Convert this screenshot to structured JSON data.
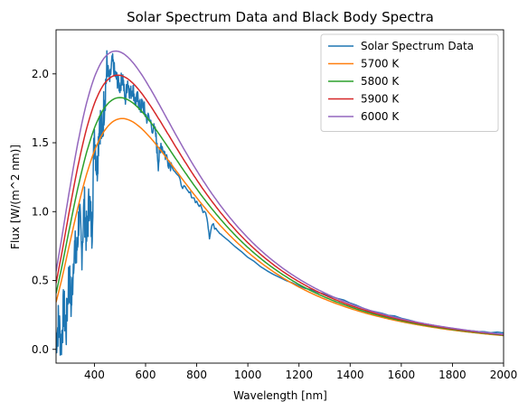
{
  "chart_data": {
    "type": "line",
    "title": "Solar Spectrum Data and Black Body Spectra",
    "xlabel": "Wavelength [nm]",
    "ylabel": "Flux [W/(m^2 nm)]",
    "xlim": [
      250,
      2000
    ],
    "ylim": [
      -0.1,
      2.32
    ],
    "xticks": [
      400,
      600,
      800,
      1000,
      1200,
      1400,
      1600,
      1800,
      2000
    ],
    "yticks": [
      0.0,
      0.5,
      1.0,
      1.5,
      2.0
    ],
    "xtick_labels": [
      "400",
      "600",
      "800",
      "1000",
      "1200",
      "1400",
      "1600",
      "1800",
      "2000"
    ],
    "ytick_labels": [
      "0.0",
      "0.5",
      "1.0",
      "1.5",
      "2.0"
    ],
    "grid": false,
    "legend_position": "top-right",
    "series": [
      {
        "name": "Solar Spectrum Data",
        "color": "#1f77b4",
        "x": [
          250,
          260,
          270,
          280,
          290,
          300,
          310,
          320,
          330,
          340,
          350,
          360,
          370,
          380,
          390,
          400,
          410,
          420,
          430,
          440,
          450,
          460,
          470,
          480,
          490,
          500,
          510,
          520,
          530,
          540,
          550,
          560,
          570,
          580,
          590,
          600,
          620,
          640,
          650,
          660,
          680,
          700,
          720,
          740,
          760,
          780,
          800,
          820,
          840,
          850,
          860,
          880,
          900,
          950,
          1000,
          1050,
          1100,
          1150,
          1200,
          1250,
          1300,
          1350,
          1400,
          1450,
          1500,
          1550,
          1600,
          1650,
          1700,
          1750,
          1800,
          1850,
          1900,
          1950,
          2000
        ],
        "y": [
          0.08,
          0.2,
          0.05,
          0.3,
          0.15,
          0.55,
          0.3,
          0.75,
          0.65,
          1.0,
          0.7,
          1.05,
          0.8,
          1.1,
          0.85,
          1.6,
          1.3,
          1.7,
          1.55,
          1.85,
          2.05,
          1.95,
          2.1,
          2.0,
          1.95,
          1.9,
          2.0,
          1.8,
          1.95,
          1.85,
          1.9,
          1.8,
          1.82,
          1.75,
          1.78,
          1.7,
          1.65,
          1.55,
          1.35,
          1.5,
          1.4,
          1.35,
          1.28,
          1.2,
          1.15,
          1.12,
          1.07,
          1.02,
          0.97,
          0.82,
          0.9,
          0.88,
          0.83,
          0.75,
          0.67,
          0.6,
          0.54,
          0.5,
          0.46,
          0.43,
          0.4,
          0.37,
          0.34,
          0.3,
          0.27,
          0.25,
          0.23,
          0.2,
          0.18,
          0.165,
          0.15,
          0.14,
          0.13,
          0.125,
          0.12
        ]
      },
      {
        "name": "5700 K",
        "color": "#ff7f0e",
        "temperature": 5700
      },
      {
        "name": "5800 K",
        "color": "#2ca02c",
        "temperature": 5800
      },
      {
        "name": "5900 K",
        "color": "#d62728",
        "temperature": 5900
      },
      {
        "name": "6000 K",
        "color": "#9467bd",
        "temperature": 6000
      }
    ]
  }
}
